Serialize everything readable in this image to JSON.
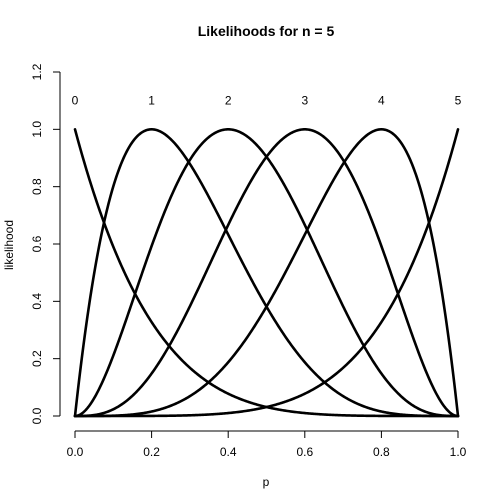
{
  "chart_data": {
    "type": "line",
    "title": "Likelihoods for n =  5",
    "xlabel": "p",
    "ylabel": "likelihood",
    "xlim": [
      0,
      1
    ],
    "ylim": [
      0,
      1.2
    ],
    "x_ticks": [
      0.0,
      0.2,
      0.4,
      0.6,
      0.8,
      1.0
    ],
    "x_tick_labels": [
      "0.0",
      "0.2",
      "0.4",
      "0.6",
      "0.8",
      "1.0"
    ],
    "y_ticks": [
      0.0,
      0.2,
      0.4,
      0.6,
      0.8,
      1.0,
      1.2
    ],
    "y_tick_labels": [
      "0.0",
      "0.2",
      "0.4",
      "0.6",
      "0.8",
      "1.0",
      "1.2"
    ],
    "grid": false,
    "n": 5,
    "series": [
      {
        "name": "0",
        "k": 0,
        "label_x": 0.0,
        "label_y": 1.1
      },
      {
        "name": "1",
        "k": 1,
        "label_x": 0.2,
        "label_y": 1.1
      },
      {
        "name": "2",
        "k": 2,
        "label_x": 0.4,
        "label_y": 1.1
      },
      {
        "name": "3",
        "k": 3,
        "label_x": 0.6,
        "label_y": 1.1
      },
      {
        "name": "4",
        "k": 4,
        "label_x": 0.8,
        "label_y": 1.1
      },
      {
        "name": "5",
        "k": 5,
        "label_x": 1.0,
        "label_y": 1.1
      }
    ],
    "normalization": "scaled to max 1 at p = k/n"
  }
}
